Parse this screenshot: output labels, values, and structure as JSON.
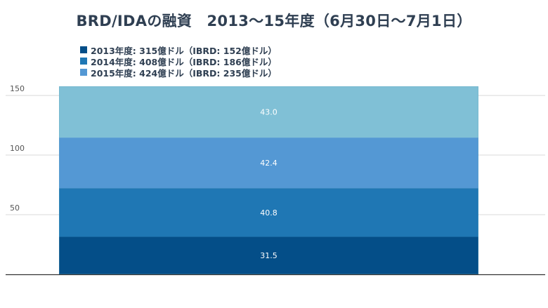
{
  "chart_data": {
    "type": "bar",
    "stacked": true,
    "title": "BRD/IDAの融資　2013〜15年度（6月30日〜7月1日）",
    "categories": [
      ""
    ],
    "series": [
      {
        "name": "2013年度: 315億ドル（IBRD: 152億ドル）",
        "values": [
          31.5
        ],
        "color": "#044e88"
      },
      {
        "name": "2014年度: 408億ドル（IBRD: 186億ドル）",
        "values": [
          40.8
        ],
        "color": "#1f77b4"
      },
      {
        "name": "2015年度: 424億ドル（IBRD: 235億ドル）",
        "values": [
          42.4
        ],
        "color": "#5498d4"
      },
      {
        "name": "",
        "values": [
          43.0
        ],
        "color": "#80c0d6"
      }
    ],
    "data_labels": [
      "31.5",
      "40.8",
      "42.4",
      "43.0"
    ],
    "y_ticks": [
      50,
      100,
      150
    ],
    "ylim": [
      0,
      157.7
    ],
    "grid": true,
    "legend_position": "top-left",
    "xlabel": "",
    "ylabel": ""
  }
}
